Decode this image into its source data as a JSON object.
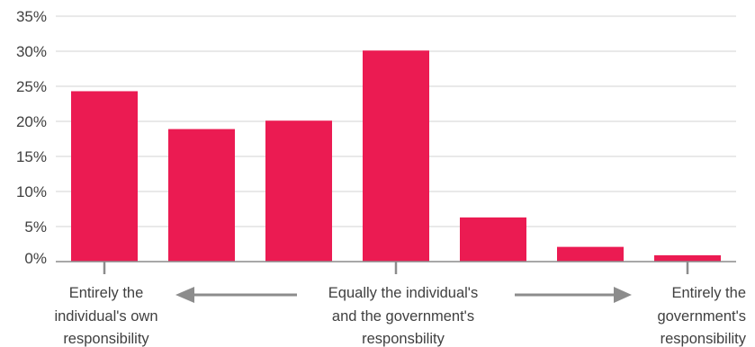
{
  "chart_data": {
    "type": "bar",
    "values": [
      24.3,
      18.9,
      20.1,
      30.1,
      6.3,
      2.1,
      0.9
    ],
    "ylim": [
      0,
      35
    ],
    "yticks": [
      "0%",
      "5%",
      "10%",
      "15%",
      "20%",
      "25%",
      "30%",
      "35%"
    ],
    "grid": true,
    "bar_color": "#EB1B52",
    "scale_labels": [
      {
        "lines": [
          "Entirely the",
          "individual's own",
          "responsibility"
        ]
      },
      {
        "lines": [
          "Equally the individual's",
          "and the government's",
          "responsbility"
        ]
      },
      {
        "lines": [
          "Entirely the",
          "government's",
          "responsibility"
        ]
      }
    ]
  }
}
